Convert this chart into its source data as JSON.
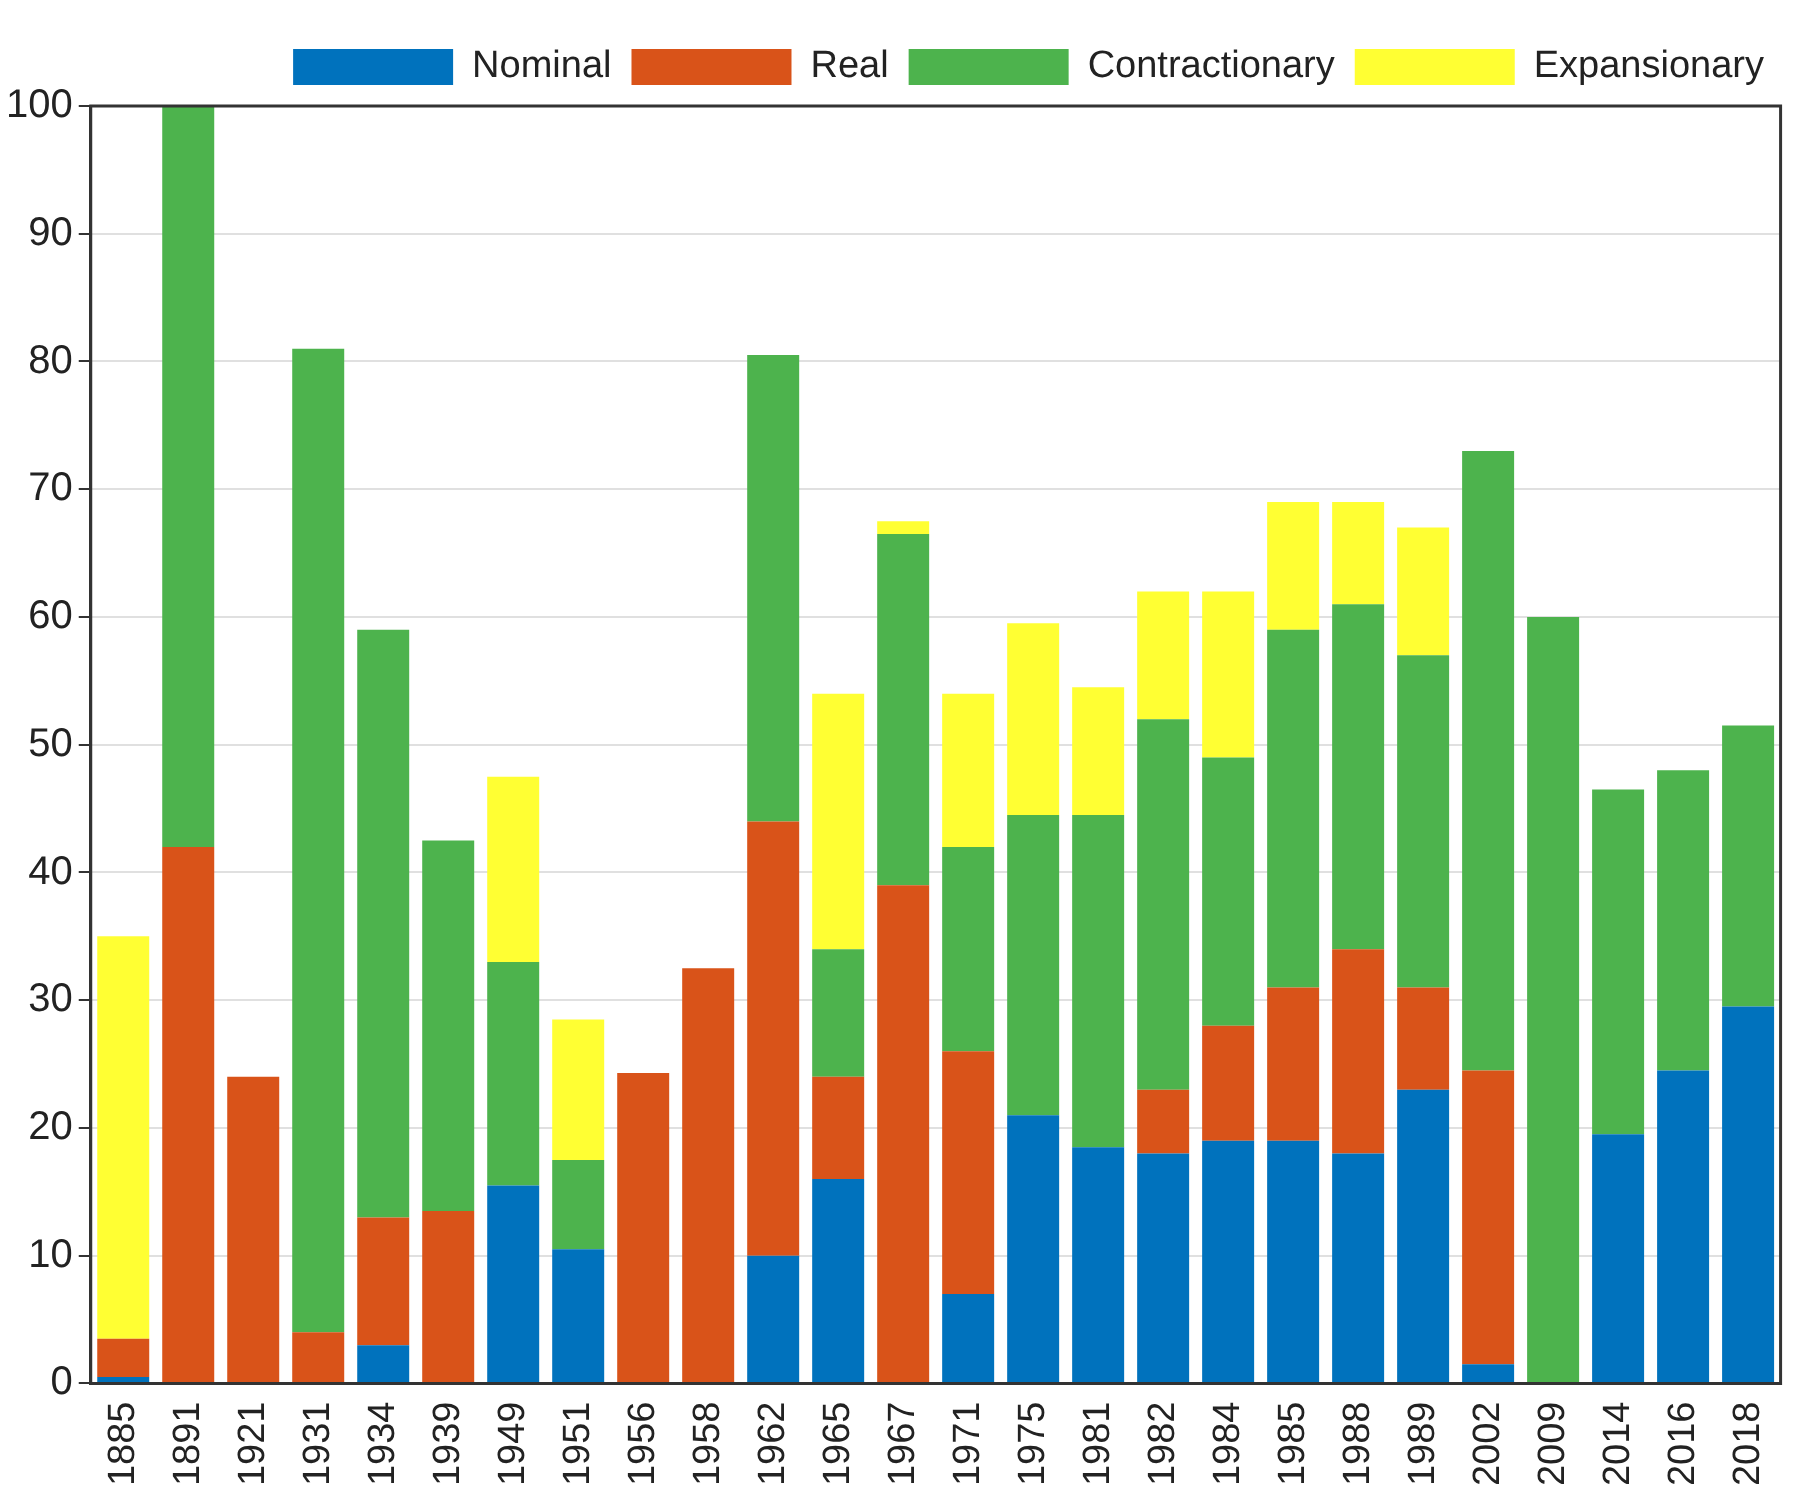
{
  "chart_data": {
    "type": "bar",
    "stacked": true,
    "legend": "top right",
    "grid": "y",
    "categories": [
      "1885",
      "1891",
      "1921",
      "1931",
      "1934",
      "1939",
      "1949",
      "1951",
      "1956",
      "1958",
      "1962",
      "1965",
      "1967",
      "1971",
      "1975",
      "1981",
      "1982",
      "1984",
      "1985",
      "1988",
      "1989",
      "2002",
      "2009",
      "2014",
      "2016",
      "2018"
    ],
    "ylim": [
      0,
      100
    ],
    "yticks": [
      0,
      10,
      20,
      30,
      40,
      50,
      60,
      70,
      80,
      90,
      100
    ],
    "series": [
      {
        "name": "Nominal",
        "color": "#0072bd",
        "values": [
          0.5,
          0,
          0,
          0,
          3,
          0,
          15.5,
          10.5,
          0,
          0,
          10,
          16,
          0,
          7,
          21,
          18.5,
          18,
          19,
          19,
          18,
          23,
          1.5,
          0,
          19.5,
          24.5,
          29.5
        ]
      },
      {
        "name": "Real",
        "color": "#d95319",
        "values": [
          3,
          42,
          24,
          4,
          10,
          13.5,
          0,
          0,
          24.3,
          32.5,
          34,
          8,
          39,
          19,
          0,
          0,
          5,
          9,
          12,
          16,
          8,
          23,
          0,
          0,
          0,
          0
        ]
      },
      {
        "name": "Contractionary",
        "color": "#4db34d",
        "values": [
          0,
          58,
          0,
          77,
          46,
          29,
          17.5,
          7,
          0,
          0,
          36.5,
          10,
          27.5,
          16,
          23.5,
          26,
          29,
          21,
          28,
          27,
          26,
          48.5,
          60,
          27,
          23.5,
          22
        ]
      },
      {
        "name": "Expansionary",
        "color": "#ffff33",
        "values": [
          31.5,
          0,
          0,
          0,
          0,
          0,
          14.5,
          11,
          0,
          0,
          0,
          20,
          1,
          12,
          15,
          10,
          10,
          13,
          10,
          8,
          10,
          0,
          0,
          0,
          0,
          0
        ]
      }
    ]
  }
}
